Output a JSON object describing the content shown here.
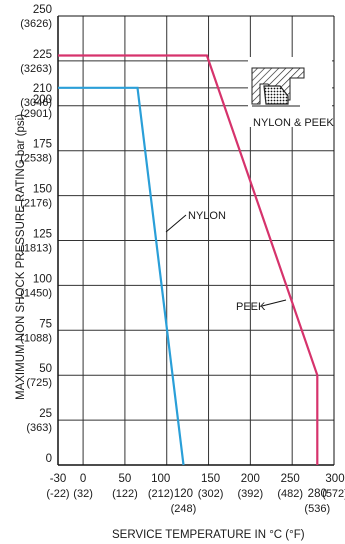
{
  "chart_data": {
    "type": "line",
    "xlabel": "SERVICE TEMPERATURE  IN  °C (°F)",
    "ylabel": "MAXIMUM NON SHOCK PRESSURE RATING bar (psi)",
    "xlim": [
      -30,
      300
    ],
    "ylim": [
      0,
      250
    ],
    "grid": true,
    "x_ticks": [
      {
        "value": -30,
        "label": "-30",
        "sub": "(-22)"
      },
      {
        "value": 0,
        "label": "0",
        "sub": "(32)"
      },
      {
        "value": 50,
        "label": "50",
        "sub": "(122)"
      },
      {
        "value": 100,
        "label": "100",
        "sub": "(212)"
      },
      {
        "value": 120,
        "label": "120",
        "sub": "(248)"
      },
      {
        "value": 150,
        "label": "150",
        "sub": "(302)"
      },
      {
        "value": 200,
        "label": "200",
        "sub": "(392)"
      },
      {
        "value": 250,
        "label": "250",
        "sub": "(482)"
      },
      {
        "value": 280,
        "label": "280",
        "sub": "(536)"
      },
      {
        "value": 300,
        "label": "300",
        "sub": "(572)"
      }
    ],
    "y_ticks": [
      {
        "value": 0,
        "label": "0",
        "sub": ""
      },
      {
        "value": 25,
        "label": "25",
        "sub": "(363)"
      },
      {
        "value": 50,
        "label": "50",
        "sub": "(725)"
      },
      {
        "value": 75,
        "label": "75",
        "sub": "(1088)"
      },
      {
        "value": 100,
        "label": "100",
        "sub": "(1450)"
      },
      {
        "value": 125,
        "label": "125",
        "sub": "(1813)"
      },
      {
        "value": 150,
        "label": "150",
        "sub": "(2176)"
      },
      {
        "value": 175,
        "label": "175",
        "sub": "(2538)"
      },
      {
        "value": 200,
        "label": "200",
        "sub": "(2901)"
      },
      {
        "value": 210,
        "label": "210",
        "sub": "(3046)"
      },
      {
        "value": 225,
        "label": "225",
        "sub": "(3263)"
      },
      {
        "value": 250,
        "label": "250",
        "sub": "(3626)"
      }
    ],
    "series": [
      {
        "name": "NYLON",
        "color": "#2a9fd8",
        "points": [
          [
            -30,
            210
          ],
          [
            65,
            210
          ],
          [
            120,
            0
          ]
        ]
      },
      {
        "name": "PEEK",
        "color": "#d6336c",
        "points": [
          [
            -30,
            228
          ],
          [
            148,
            228
          ],
          [
            280,
            50
          ],
          [
            280,
            0
          ]
        ]
      }
    ],
    "inset_label": "NYLON & PEEK"
  }
}
